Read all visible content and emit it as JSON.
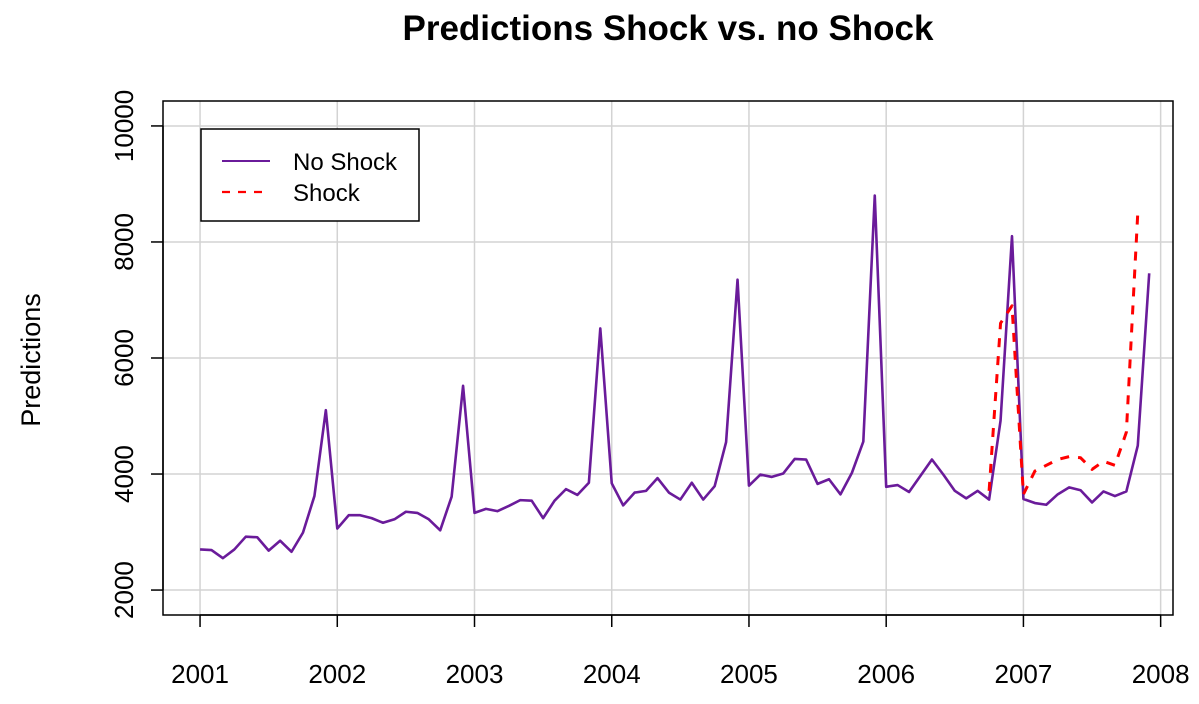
{
  "chart_data": {
    "type": "line",
    "title": "Predictions Shock vs. no Shock",
    "xlabel": "",
    "ylabel": "Predictions",
    "xlim": [
      2000.73,
      2008.09
    ],
    "ylim": [
      1570,
      10430
    ],
    "x_ticks": [
      2001,
      2002,
      2003,
      2004,
      2005,
      2006,
      2007,
      2008
    ],
    "x_tick_labels": [
      "2001",
      "2002",
      "2003",
      "2004",
      "2005",
      "2006",
      "2007",
      "2008"
    ],
    "y_ticks": [
      2000,
      4000,
      6000,
      8000,
      10000
    ],
    "y_tick_labels": [
      "2000",
      "4000",
      "6000",
      "8000",
      "10000"
    ],
    "grid": true,
    "legend_position": "top-left",
    "series": [
      {
        "name": "No Shock",
        "color": "#6a1b9a",
        "style": "solid",
        "x_start": 2001,
        "x_step_months": 1,
        "values": [
          2700,
          2690,
          2550,
          2700,
          2920,
          2910,
          2680,
          2850,
          2660,
          2990,
          3620,
          5100,
          3060,
          3290,
          3290,
          3240,
          3160,
          3220,
          3350,
          3330,
          3220,
          3030,
          3610,
          5520,
          3330,
          3400,
          3360,
          3450,
          3550,
          3540,
          3240,
          3540,
          3740,
          3640,
          3850,
          6510,
          3840,
          3460,
          3680,
          3710,
          3930,
          3680,
          3560,
          3850,
          3560,
          3790,
          4550,
          7350,
          3800,
          3990,
          3950,
          4010,
          4260,
          4250,
          3830,
          3910,
          3650,
          4020,
          4560,
          8800,
          3780,
          3810,
          3690,
          3970,
          4250,
          3990,
          3710,
          3580,
          3710,
          3560,
          4920,
          8100,
          3570,
          3500,
          3470,
          3650,
          3770,
          3720,
          3510,
          3700,
          3620,
          3700,
          4490,
          7460
        ]
      },
      {
        "name": "Shock",
        "color": "#ff0000",
        "style": "dashed",
        "x_start": 2006.75,
        "x_step_months": 1,
        "values": [
          3710,
          6600,
          6900,
          3650,
          4050,
          4150,
          4250,
          4300,
          4280,
          4080,
          4220,
          4150,
          4720,
          8500
        ]
      }
    ]
  }
}
